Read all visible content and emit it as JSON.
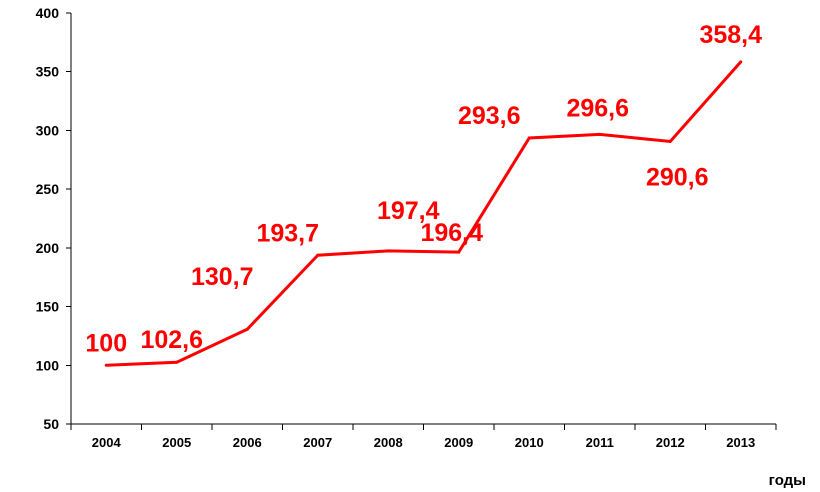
{
  "chart_data": {
    "type": "line",
    "categories": [
      "2004",
      "2005",
      "2006",
      "2007",
      "2008",
      "2009",
      "2010",
      "2011",
      "2012",
      "2013"
    ],
    "series": [
      {
        "values": [
          100,
          102.6,
          130.7,
          193.7,
          197.4,
          196.4,
          293.6,
          296.6,
          290.6,
          358.4
        ],
        "data_labels": [
          "100",
          "102,6",
          "130,7",
          "193,7",
          "197,4",
          "196,4",
          "293,6",
          "296,6",
          "290,6",
          "358,4"
        ],
        "color": "#ff0000"
      }
    ],
    "xlabel": "годы",
    "ylabel": "",
    "ylim": [
      50,
      400
    ],
    "yticks": [
      "50",
      "100",
      "150",
      "200",
      "250",
      "300",
      "350",
      "400"
    ],
    "grid": false,
    "legend": "none"
  }
}
